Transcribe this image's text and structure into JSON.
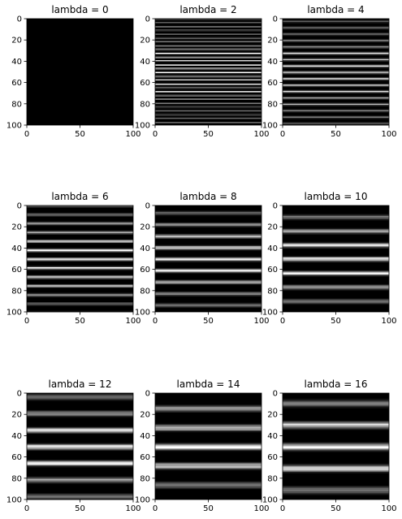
{
  "figure_title": "",
  "chart_data": [
    {
      "type": "heatmap",
      "title": "lambda = 0",
      "lambda": 0,
      "colormap": "gray",
      "xlim": [
        0,
        100
      ],
      "ylim": [
        100,
        0
      ],
      "xticks": [
        0,
        50,
        100
      ],
      "yticks": [
        0,
        20,
        40,
        60,
        80,
        100
      ],
      "xlabel": "",
      "ylabel": "",
      "pattern": "uniform black"
    },
    {
      "type": "heatmap",
      "title": "lambda = 2",
      "lambda": 2,
      "colormap": "gray",
      "xlim": [
        0,
        100
      ],
      "ylim": [
        100,
        0
      ],
      "xticks": [
        0,
        50,
        100
      ],
      "yticks": [
        0,
        20,
        40,
        60,
        80,
        100
      ],
      "xlabel": "",
      "ylabel": "",
      "pattern": "horizontal stripes, brightest near row 50"
    },
    {
      "type": "heatmap",
      "title": "lambda = 4",
      "lambda": 4,
      "colormap": "gray",
      "xlim": [
        0,
        100
      ],
      "ylim": [
        100,
        0
      ],
      "xticks": [
        0,
        50,
        100
      ],
      "yticks": [
        0,
        20,
        40,
        60,
        80,
        100
      ],
      "xlabel": "",
      "ylabel": "",
      "pattern": "horizontal stripes, brightest near row 50"
    },
    {
      "type": "heatmap",
      "title": "lambda = 6",
      "lambda": 6,
      "colormap": "gray",
      "xlim": [
        0,
        100
      ],
      "ylim": [
        100,
        0
      ],
      "xticks": [
        0,
        50,
        100
      ],
      "yticks": [
        0,
        20,
        40,
        60,
        80,
        100
      ],
      "xlabel": "",
      "ylabel": "",
      "pattern": "horizontal stripes, brightest near row 50"
    },
    {
      "type": "heatmap",
      "title": "lambda = 8",
      "lambda": 8,
      "colormap": "gray",
      "xlim": [
        0,
        100
      ],
      "ylim": [
        100,
        0
      ],
      "xticks": [
        0,
        50,
        100
      ],
      "yticks": [
        0,
        20,
        40,
        60,
        80,
        100
      ],
      "xlabel": "",
      "ylabel": "",
      "pattern": "horizontal stripes, brightest near row 50"
    },
    {
      "type": "heatmap",
      "title": "lambda = 10",
      "lambda": 10,
      "colormap": "gray",
      "xlim": [
        0,
        100
      ],
      "ylim": [
        100,
        0
      ],
      "xticks": [
        0,
        50,
        100
      ],
      "yticks": [
        0,
        20,
        40,
        60,
        80,
        100
      ],
      "xlabel": "",
      "ylabel": "",
      "pattern": "horizontal stripes, brightest near row 50"
    },
    {
      "type": "heatmap",
      "title": "lambda = 12",
      "lambda": 12,
      "colormap": "gray",
      "xlim": [
        0,
        100
      ],
      "ylim": [
        100,
        0
      ],
      "xticks": [
        0,
        50,
        100
      ],
      "yticks": [
        0,
        20,
        40,
        60,
        80,
        100
      ],
      "xlabel": "",
      "ylabel": "",
      "pattern": "horizontal stripes, brightest near row 50"
    },
    {
      "type": "heatmap",
      "title": "lambda = 14",
      "lambda": 14,
      "colormap": "gray",
      "xlim": [
        0,
        100
      ],
      "ylim": [
        100,
        0
      ],
      "xticks": [
        0,
        50,
        100
      ],
      "yticks": [
        0,
        20,
        40,
        60,
        80,
        100
      ],
      "xlabel": "",
      "ylabel": "",
      "pattern": "horizontal stripes, brightest near row 50"
    },
    {
      "type": "heatmap",
      "title": "lambda = 16",
      "lambda": 16,
      "colormap": "gray",
      "xlim": [
        0,
        100
      ],
      "ylim": [
        100,
        0
      ],
      "xticks": [
        0,
        50,
        100
      ],
      "yticks": [
        0,
        20,
        40,
        60,
        80,
        100
      ],
      "xlabel": "",
      "ylabel": "",
      "pattern": "horizontal stripes, brightest near row 50"
    }
  ]
}
